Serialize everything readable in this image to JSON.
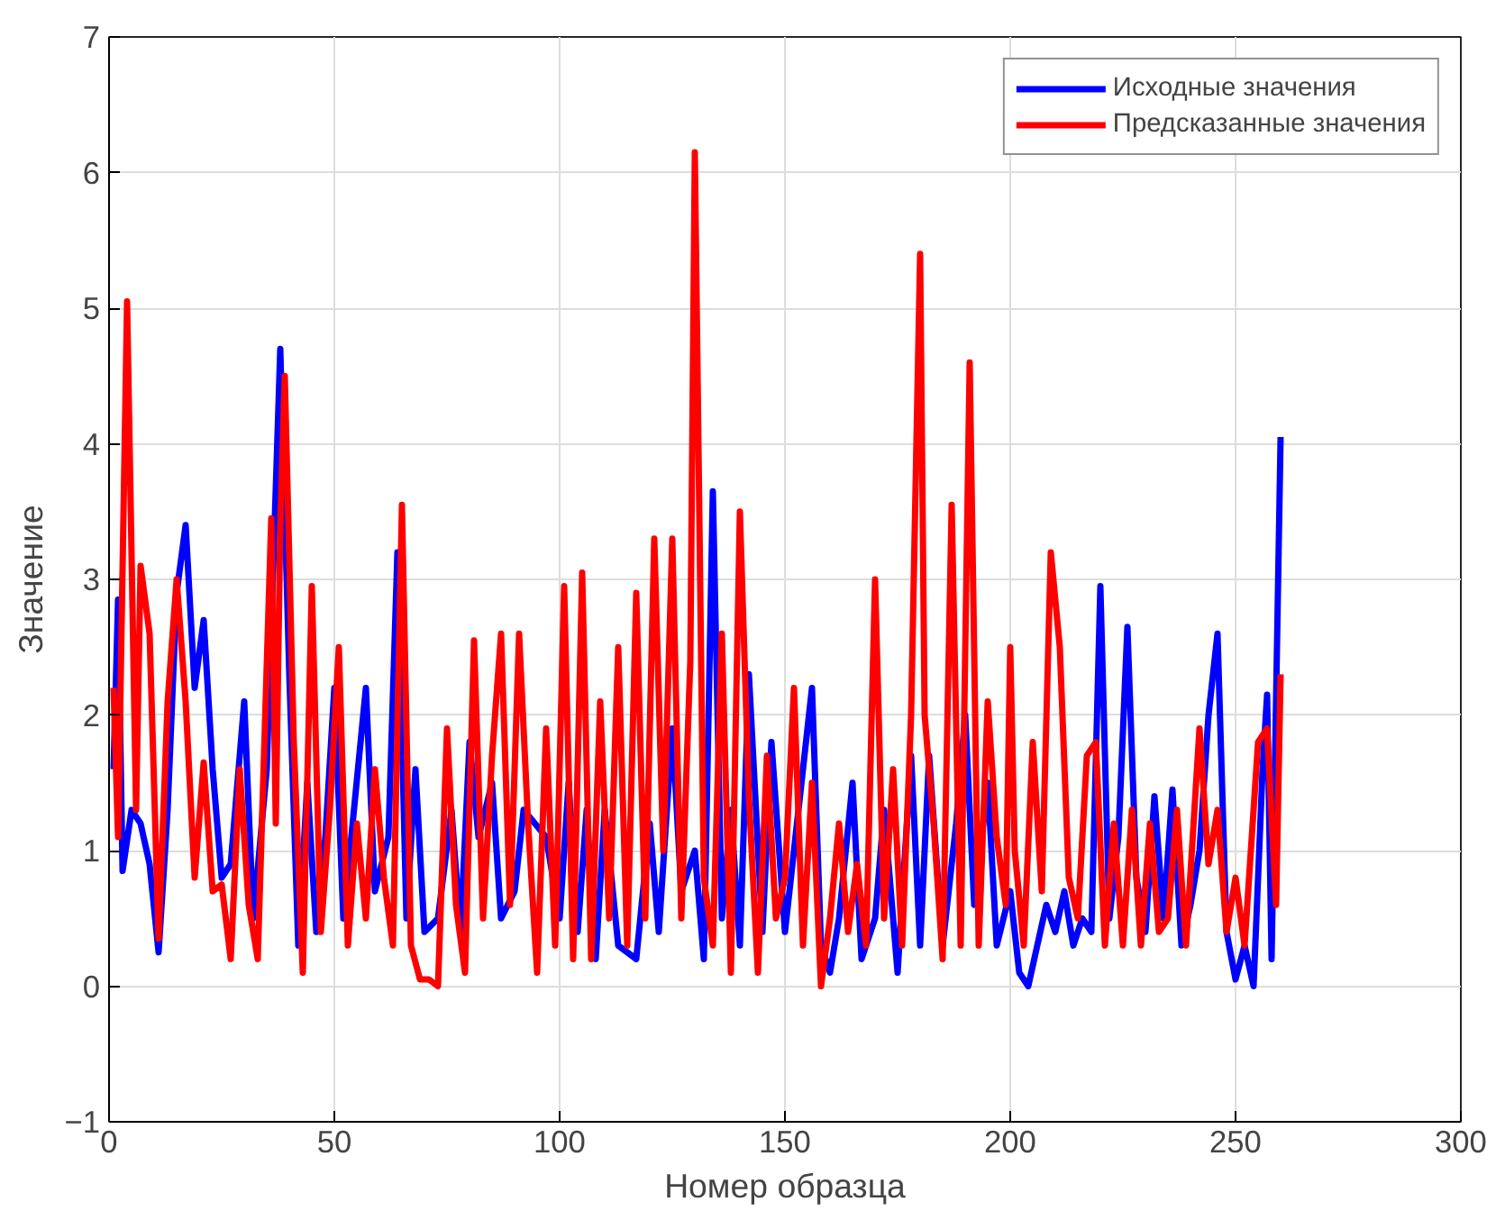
{
  "chart_data": {
    "type": "line",
    "xlabel": "Номер образца",
    "ylabel": "Значение",
    "xlim": [
      0,
      300
    ],
    "ylim": [
      -1,
      7
    ],
    "xticks": [
      0,
      50,
      100,
      150,
      200,
      250,
      300
    ],
    "yticks": [
      -1,
      0,
      1,
      2,
      3,
      4,
      5,
      6,
      7
    ],
    "grid": true,
    "legend": "top right",
    "line_style": "solid",
    "series": [
      {
        "name": "Исходные значения",
        "color": "#0000ff",
        "x": [
          1,
          2,
          3,
          5,
          7,
          9,
          11,
          13,
          15,
          17,
          19,
          21,
          23,
          25,
          27,
          30,
          32,
          35,
          38,
          40,
          42,
          44,
          46,
          48,
          50,
          52,
          57,
          59,
          62,
          64,
          66,
          68,
          70,
          73,
          76,
          78,
          80,
          82,
          85,
          87,
          90,
          92,
          97,
          100,
          102,
          104,
          106,
          108,
          110,
          113,
          117,
          120,
          122,
          125,
          127,
          130,
          132,
          134,
          136,
          138,
          140,
          142,
          145,
          147,
          150,
          152,
          156,
          158,
          160,
          162,
          165,
          167,
          170,
          172,
          175,
          178,
          180,
          182,
          185,
          188,
          190,
          192,
          195,
          197,
          200,
          202,
          204,
          206,
          208,
          210,
          212,
          214,
          216,
          218,
          220,
          222,
          224,
          226,
          228,
          230,
          232,
          234,
          236,
          238,
          240,
          242,
          244,
          246,
          248,
          250,
          252,
          254,
          256,
          257,
          258,
          260
        ],
        "values": [
          1.6,
          2.85,
          0.85,
          1.3,
          1.2,
          0.9,
          0.25,
          1.3,
          2.9,
          3.4,
          2.2,
          2.7,
          1.6,
          0.8,
          0.9,
          2.1,
          0.5,
          1.6,
          4.7,
          2.3,
          0.3,
          1.5,
          0.4,
          1.1,
          2.2,
          0.5,
          2.2,
          0.7,
          1.1,
          3.2,
          0.5,
          1.6,
          0.4,
          0.5,
          1.3,
          0.4,
          1.8,
          1.1,
          1.5,
          0.5,
          0.7,
          1.3,
          1.1,
          0.5,
          1.5,
          0.4,
          1.3,
          0.2,
          1.3,
          0.3,
          0.2,
          1.2,
          0.4,
          1.9,
          0.7,
          1.0,
          0.2,
          3.65,
          0.5,
          1.3,
          0.3,
          2.3,
          0.4,
          1.8,
          0.4,
          1.0,
          2.2,
          0.3,
          0.1,
          0.5,
          1.5,
          0.2,
          0.5,
          1.3,
          0.1,
          1.7,
          0.3,
          1.7,
          0.3,
          1.2,
          2.0,
          0.6,
          1.5,
          0.3,
          0.7,
          0.1,
          0.0,
          0.3,
          0.6,
          0.4,
          0.7,
          0.3,
          0.5,
          0.4,
          2.95,
          0.5,
          1.1,
          2.65,
          0.8,
          0.4,
          1.4,
          0.5,
          1.45,
          0.3,
          0.6,
          1.0,
          2.0,
          2.6,
          0.4,
          0.05,
          0.3,
          0.0,
          1.6,
          2.15,
          0.2,
          4.05
        ]
      },
      {
        "name": "Предсказанные значения",
        "color": "#ff0000",
        "x": [
          1,
          2,
          4,
          6,
          7,
          9,
          11,
          13,
          15,
          17,
          19,
          21,
          23,
          25,
          27,
          29,
          31,
          33,
          36,
          37,
          38,
          39,
          41,
          43,
          45,
          47,
          49,
          51,
          53,
          55,
          57,
          59,
          61,
          63,
          65,
          67,
          69,
          71,
          73,
          75,
          77,
          79,
          81,
          83,
          85,
          87,
          89,
          91,
          93,
          95,
          97,
          99,
          101,
          103,
          105,
          107,
          109,
          111,
          113,
          115,
          117,
          119,
          121,
          123,
          125,
          127,
          129,
          130,
          132,
          134,
          136,
          138,
          140,
          142,
          144,
          146,
          148,
          150,
          152,
          154,
          156,
          158,
          160,
          162,
          164,
          166,
          168,
          170,
          172,
          174,
          176,
          178,
          180,
          181,
          183,
          185,
          187,
          189,
          191,
          193,
          195,
          197,
          199,
          200,
          201,
          203,
          205,
          207,
          209,
          211,
          213,
          215,
          217,
          219,
          221,
          223,
          225,
          227,
          229,
          231,
          233,
          235,
          237,
          239,
          242,
          244,
          246,
          248,
          250,
          252,
          255,
          257,
          259,
          260
        ],
        "values": [
          2.2,
          1.1,
          5.05,
          1.3,
          3.1,
          2.6,
          0.35,
          2.1,
          3.0,
          2.1,
          0.8,
          1.65,
          0.7,
          0.75,
          0.2,
          1.6,
          0.6,
          0.2,
          3.45,
          1.2,
          3.4,
          4.5,
          1.8,
          0.1,
          2.95,
          0.4,
          1.3,
          2.5,
          0.3,
          1.2,
          0.5,
          1.6,
          0.8,
          0.3,
          3.55,
          0.3,
          0.05,
          0.05,
          0.0,
          1.9,
          0.6,
          0.1,
          2.55,
          0.5,
          1.7,
          2.6,
          0.6,
          2.6,
          1.2,
          0.1,
          1.9,
          0.3,
          2.95,
          0.2,
          3.05,
          0.2,
          2.1,
          0.5,
          2.5,
          0.3,
          2.9,
          0.5,
          3.3,
          1.0,
          3.3,
          0.5,
          2.4,
          6.15,
          0.8,
          0.3,
          2.6,
          0.1,
          3.5,
          1.4,
          0.1,
          1.7,
          0.5,
          0.8,
          2.2,
          0.3,
          1.5,
          0.0,
          0.5,
          1.2,
          0.4,
          0.9,
          0.3,
          3.0,
          0.5,
          1.6,
          0.3,
          2.0,
          5.4,
          2.0,
          1.2,
          0.2,
          3.55,
          0.3,
          4.6,
          0.3,
          2.1,
          1.1,
          0.6,
          2.5,
          1.0,
          0.3,
          1.8,
          0.7,
          3.2,
          2.5,
          0.8,
          0.5,
          1.7,
          1.8,
          0.3,
          1.2,
          0.3,
          1.3,
          0.3,
          1.2,
          0.4,
          0.5,
          1.3,
          0.3,
          1.9,
          0.9,
          1.3,
          0.4,
          0.8,
          0.3,
          1.8,
          1.9,
          0.6,
          2.3
        ]
      }
    ]
  }
}
